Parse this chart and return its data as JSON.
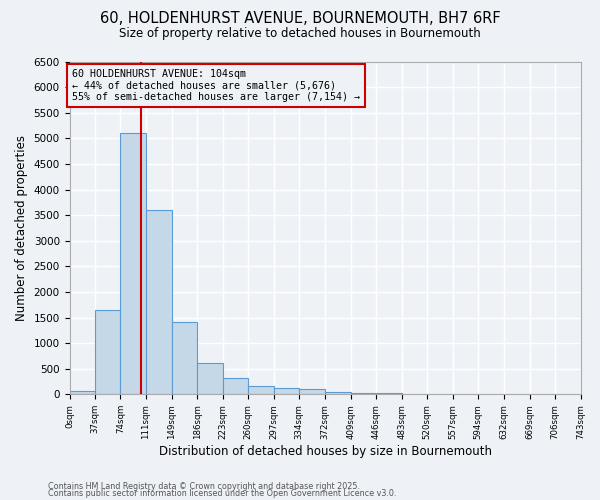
{
  "title_line1": "60, HOLDENHURST AVENUE, BOURNEMOUTH, BH7 6RF",
  "title_line2": "Size of property relative to detached houses in Bournemouth",
  "xlabel": "Distribution of detached houses by size in Bournemouth",
  "ylabel": "Number of detached properties",
  "bar_heights": [
    75,
    1650,
    5100,
    3600,
    1420,
    620,
    310,
    165,
    130,
    100,
    45,
    30,
    20,
    10,
    5,
    3,
    2,
    1,
    1,
    0
  ],
  "bin_edges": [
    0,
    37,
    74,
    111,
    149,
    186,
    223,
    260,
    297,
    334,
    372,
    409,
    446,
    483,
    520,
    557,
    594,
    632,
    669,
    706,
    743
  ],
  "tick_labels": [
    "0sqm",
    "37sqm",
    "74sqm",
    "111sqm",
    "149sqm",
    "186sqm",
    "223sqm",
    "260sqm",
    "297sqm",
    "334sqm",
    "372sqm",
    "409sqm",
    "446sqm",
    "483sqm",
    "520sqm",
    "557sqm",
    "594sqm",
    "632sqm",
    "669sqm",
    "706sqm",
    "743sqm"
  ],
  "bar_color": "#c5d8e8",
  "bar_edge_color": "#5b9bd5",
  "vline_x": 104,
  "vline_color": "#cc0000",
  "annotation_text": "60 HOLDENHURST AVENUE: 104sqm\n← 44% of detached houses are smaller (5,676)\n55% of semi-detached houses are larger (7,154) →",
  "annotation_box_color": "#cc0000",
  "annotation_text_color": "#000000",
  "ylim": [
    0,
    6500
  ],
  "yticks": [
    0,
    500,
    1000,
    1500,
    2000,
    2500,
    3000,
    3500,
    4000,
    4500,
    5000,
    5500,
    6000,
    6500
  ],
  "background_color": "#eef2f7",
  "grid_color": "#ffffff",
  "footer_line1": "Contains HM Land Registry data © Crown copyright and database right 2025.",
  "footer_line2": "Contains public sector information licensed under the Open Government Licence v3.0."
}
